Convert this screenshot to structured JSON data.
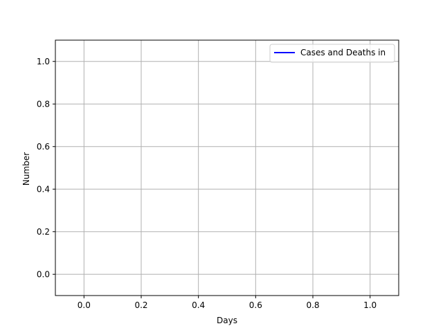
{
  "chart_data": {
    "type": "line",
    "title": "",
    "xlabel": "Days",
    "ylabel": "Number",
    "xlim": [
      -0.1,
      1.1
    ],
    "ylim": [
      -0.1,
      1.1
    ],
    "xticks": [
      0.0,
      0.2,
      0.4,
      0.6,
      0.8,
      1.0
    ],
    "yticks": [
      0.0,
      0.2,
      0.4,
      0.6,
      0.8,
      1.0
    ],
    "xtick_labels": [
      "0.0",
      "0.2",
      "0.4",
      "0.6",
      "0.8",
      "1.0"
    ],
    "ytick_labels": [
      "0.0",
      "0.2",
      "0.4",
      "0.6",
      "0.8",
      "1.0"
    ],
    "grid": true,
    "legend_position": "top-right",
    "series": [
      {
        "name": "Cases and Deaths in",
        "color": "#0000ff",
        "x": [],
        "y": []
      }
    ]
  }
}
